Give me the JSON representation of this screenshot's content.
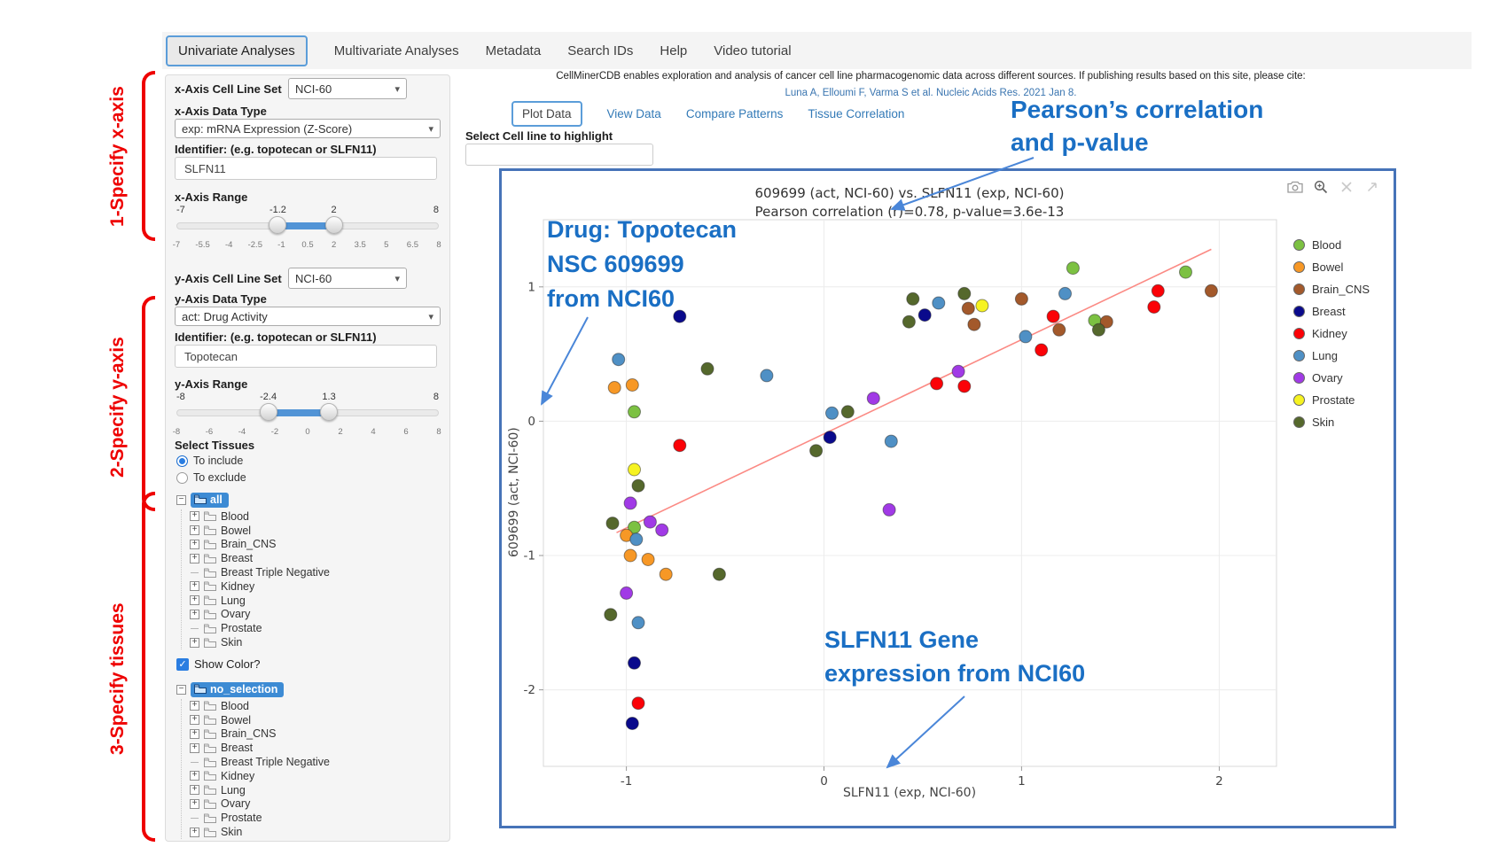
{
  "nav": {
    "tabs": [
      {
        "label": "Univariate Analyses",
        "active": true
      },
      {
        "label": "Multivariate Analyses",
        "active": false
      },
      {
        "label": "Metadata",
        "active": false
      },
      {
        "label": "Search IDs",
        "active": false
      },
      {
        "label": "Help",
        "active": false
      },
      {
        "label": "Video tutorial",
        "active": false
      }
    ]
  },
  "annotations": {
    "red_labels": [
      "1-Specify x-axis",
      "2-Specify y-axis",
      "3-Specify tissues"
    ],
    "blue": {
      "pearson_line1": "Pearson’s correlation",
      "pearson_line2": "and p-value",
      "drug_line1": "Drug: Topotecan",
      "drug_line2": "NSC 609699",
      "drug_line3": "from NCI60",
      "gene_line1": "SLFN11 Gene",
      "gene_line2": "expression from NCI60"
    },
    "arrow_color": "#4a86d8"
  },
  "sidebar": {
    "x_section": {
      "cell_line_set_label": "x-Axis Cell Line Set",
      "cell_line_set_value": "NCI-60",
      "data_type_label": "x-Axis Data Type",
      "data_type_value": "exp: mRNA Expression (Z-Score)",
      "identifier_label": "Identifier: (e.g. topotecan or SLFN11)",
      "identifier_value": "SLFN11",
      "range_label": "x-Axis Range",
      "range": {
        "min": -7,
        "max": 8,
        "low": -1.2,
        "high": 2,
        "min_label": "-7",
        "max_label": "8",
        "low_label": "-1.2",
        "high_label": "2",
        "ticks": [
          "-7",
          "-5.5",
          "-4",
          "-2.5",
          "-1",
          "0.5",
          "2",
          "3.5",
          "5",
          "6.5",
          "8"
        ]
      }
    },
    "y_section": {
      "cell_line_set_label": "y-Axis Cell Line Set",
      "cell_line_set_value": "NCI-60",
      "data_type_label": "y-Axis Data Type",
      "data_type_value": "act: Drug Activity",
      "identifier_label": "Identifier: (e.g. topotecan or SLFN11)",
      "identifier_value": "Topotecan",
      "range_label": "y-Axis Range",
      "range": {
        "min": -8,
        "max": 8,
        "low": -2.4,
        "high": 1.3,
        "min_label": "-8",
        "max_label": "8",
        "low_label": "-2.4",
        "high_label": "1.3",
        "ticks": [
          "-8",
          "-6",
          "-4",
          "-2",
          "0",
          "2",
          "4",
          "6",
          "8"
        ]
      }
    },
    "select_tissues_label": "Select Tissues",
    "radios": [
      {
        "label": "To include",
        "selected": true
      },
      {
        "label": "To exclude",
        "selected": false
      }
    ],
    "show_color_label": "Show Color?",
    "show_color_checked": true,
    "trees": [
      {
        "root": "all",
        "items": [
          {
            "label": "Blood",
            "leaf": false
          },
          {
            "label": "Bowel",
            "leaf": false
          },
          {
            "label": "Brain_CNS",
            "leaf": false
          },
          {
            "label": "Breast",
            "leaf": false
          },
          {
            "label": "Breast Triple Negative",
            "leaf": true
          },
          {
            "label": "Kidney",
            "leaf": false
          },
          {
            "label": "Lung",
            "leaf": false
          },
          {
            "label": "Ovary",
            "leaf": false
          },
          {
            "label": "Prostate",
            "leaf": true
          },
          {
            "label": "Skin",
            "leaf": false
          }
        ]
      },
      {
        "root": "no_selection",
        "items": [
          {
            "label": "Blood",
            "leaf": false
          },
          {
            "label": "Bowel",
            "leaf": false
          },
          {
            "label": "Brain_CNS",
            "leaf": false
          },
          {
            "label": "Breast",
            "leaf": false
          },
          {
            "label": "Breast Triple Negative",
            "leaf": true
          },
          {
            "label": "Kidney",
            "leaf": false
          },
          {
            "label": "Lung",
            "leaf": false
          },
          {
            "label": "Ovary",
            "leaf": false
          },
          {
            "label": "Prostate",
            "leaf": true
          },
          {
            "label": "Skin",
            "leaf": false
          }
        ]
      }
    ]
  },
  "main": {
    "citation_line1": "CellMinerCDB enables exploration and analysis of cancer cell line pharmacogenomic data across different sources. If publishing results based on this site, please cite:",
    "citation_line2": "Luna A, Elloumi F, Varma S et al. Nucleic Acids Res. 2021 Jan 8.",
    "tabs": [
      {
        "label": "Plot Data",
        "active": true
      },
      {
        "label": "View Data",
        "active": false
      },
      {
        "label": "Compare Patterns",
        "active": false
      },
      {
        "label": "Tissue Correlation",
        "active": false
      }
    ],
    "highlight_label": "Select Cell line to highlight",
    "highlight_value": ""
  },
  "plot": {
    "modebar_icons": [
      "camera-icon",
      "zoom-in-icon",
      "zoom-box-icon",
      "reset-axes-icon"
    ],
    "border_color": "#4673b8"
  },
  "chart_data": {
    "type": "scatter",
    "title": "609699 (act, NCI-60) vs. SLFN11 (exp, NCI-60)",
    "subtitle": "Pearson correlation (r)=0.78, p-value=3.6e-13",
    "xlabel": "SLFN11 (exp, NCI-60)",
    "ylabel": "609699 (act, NCI-60)",
    "xlim": [
      -1.42,
      2.29
    ],
    "ylim": [
      -2.57,
      1.5
    ],
    "xticks": [
      -1,
      0,
      1,
      2
    ],
    "yticks": [
      -2,
      -1,
      0,
      1
    ],
    "grid": true,
    "legend_position": "right",
    "regression_line": {
      "x1": -1.05,
      "y1": -0.83,
      "x2": 1.96,
      "y2": 1.28,
      "color": "#fb8a84"
    },
    "series": [
      {
        "name": "Blood",
        "color": "#7cc142",
        "points": [
          [
            1.26,
            1.14
          ],
          [
            1.83,
            1.11
          ],
          [
            1.37,
            0.75
          ],
          [
            -0.96,
            0.07
          ],
          [
            -0.96,
            -0.79
          ]
        ]
      },
      {
        "name": "Bowel",
        "color": "#f79826",
        "points": [
          [
            -1.06,
            0.25
          ],
          [
            -0.97,
            0.27
          ],
          [
            -1.0,
            -0.85
          ],
          [
            -0.98,
            -1.0
          ],
          [
            -0.89,
            -1.03
          ],
          [
            -0.8,
            -1.14
          ]
        ]
      },
      {
        "name": "Brain_CNS",
        "color": "#a3592b",
        "points": [
          [
            0.76,
            0.72
          ],
          [
            0.73,
            0.84
          ],
          [
            1.0,
            0.91
          ],
          [
            1.19,
            0.68
          ],
          [
            1.43,
            0.74
          ],
          [
            1.96,
            0.97
          ]
        ]
      },
      {
        "name": "Breast",
        "color": "#0a0a8c",
        "points": [
          [
            -0.73,
            0.78
          ],
          [
            0.51,
            0.79
          ],
          [
            0.03,
            -0.12
          ],
          [
            -0.96,
            -1.8
          ],
          [
            -0.97,
            -2.25
          ]
        ]
      },
      {
        "name": "Kidney",
        "color": "#fb0207",
        "points": [
          [
            1.16,
            0.78
          ],
          [
            1.1,
            0.53
          ],
          [
            1.69,
            0.97
          ],
          [
            1.67,
            0.85
          ],
          [
            0.57,
            0.28
          ],
          [
            0.71,
            0.26
          ],
          [
            -0.73,
            -0.18
          ],
          [
            -0.94,
            -2.1
          ]
        ]
      },
      {
        "name": "Lung",
        "color": "#4f90c5",
        "points": [
          [
            0.58,
            0.88
          ],
          [
            1.22,
            0.95
          ],
          [
            1.02,
            0.63
          ],
          [
            -1.04,
            0.46
          ],
          [
            -0.29,
            0.34
          ],
          [
            0.04,
            0.06
          ],
          [
            0.34,
            -0.15
          ],
          [
            -0.95,
            -0.88
          ],
          [
            -0.94,
            -1.5
          ]
        ]
      },
      {
        "name": "Ovary",
        "color": "#a13ae6",
        "points": [
          [
            0.25,
            0.17
          ],
          [
            0.68,
            0.37
          ],
          [
            -0.98,
            -0.61
          ],
          [
            0.33,
            -0.66
          ],
          [
            -0.88,
            -0.75
          ],
          [
            -0.82,
            -0.81
          ],
          [
            -1.0,
            -1.28
          ]
        ]
      },
      {
        "name": "Prostate",
        "color": "#f6f321",
        "points": [
          [
            0.8,
            0.86
          ],
          [
            -0.96,
            -0.36
          ]
        ]
      },
      {
        "name": "Skin",
        "color": "#55682c",
        "points": [
          [
            0.45,
            0.91
          ],
          [
            0.71,
            0.95
          ],
          [
            0.43,
            0.74
          ],
          [
            1.39,
            0.68
          ],
          [
            -0.59,
            0.39
          ],
          [
            0.12,
            0.07
          ],
          [
            -0.04,
            -0.22
          ],
          [
            -0.94,
            -0.48
          ],
          [
            -1.07,
            -0.76
          ],
          [
            -0.53,
            -1.14
          ],
          [
            -1.08,
            -1.44
          ]
        ]
      }
    ]
  }
}
